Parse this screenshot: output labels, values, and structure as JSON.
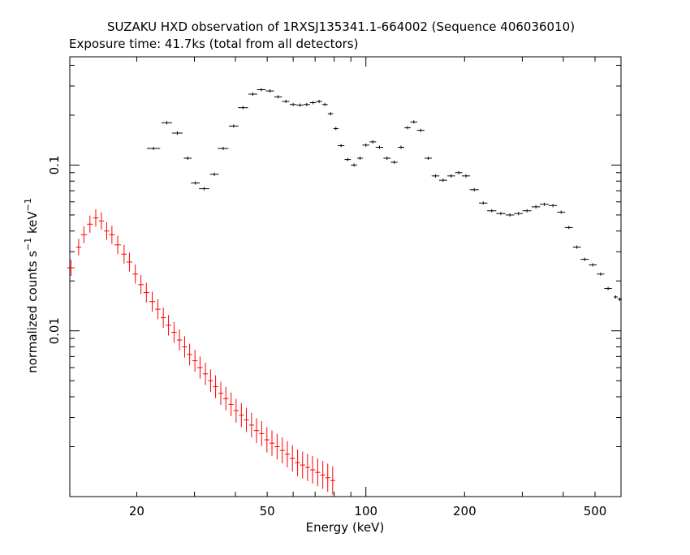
{
  "chart_data": {
    "type": "scatter",
    "title": "SUZAKU HXD observation of 1RXSJ135341.1-664002 (Sequence 406036010)",
    "subtitle": "Exposure time: 41.7ks (total from all detectors)",
    "xlabel": "Energy (keV)",
    "ylabel_main": "normalized counts s",
    "ylabel_sup1": "−1",
    "ylabel_mid": " keV",
    "ylabel_sup2": "−1",
    "xscale": "log",
    "yscale": "log",
    "xlim": [
      12.5,
      600
    ],
    "ylim": [
      0.001,
      0.45
    ],
    "xticks": [
      {
        "value": 20,
        "label": "20"
      },
      {
        "value": 50,
        "label": "50"
      },
      {
        "value": 100,
        "label": "100"
      },
      {
        "value": 200,
        "label": "200"
      },
      {
        "value": 500,
        "label": "500"
      }
    ],
    "yticks": [
      {
        "value": 0.01,
        "label": "0.01"
      },
      {
        "value": 0.1,
        "label": "0.1"
      }
    ],
    "grid": false,
    "series": [
      {
        "color": "#000000",
        "points": [
          [
            22.5,
            0.126
          ],
          [
            24.7,
            0.18
          ],
          [
            26.6,
            0.156
          ],
          [
            28.6,
            0.11
          ],
          [
            30.2,
            0.078
          ],
          [
            32.1,
            0.072
          ],
          [
            34.5,
            0.088
          ],
          [
            36.7,
            0.126
          ],
          [
            39.5,
            0.172
          ],
          [
            42.2,
            0.222
          ],
          [
            45.2,
            0.268
          ],
          [
            48.0,
            0.285
          ],
          [
            51.0,
            0.28
          ],
          [
            54,
            0.258
          ],
          [
            57,
            0.242
          ],
          [
            60,
            0.232
          ],
          [
            63,
            0.23
          ],
          [
            66,
            0.232
          ],
          [
            69,
            0.238
          ],
          [
            72,
            0.242
          ],
          [
            75,
            0.232
          ],
          [
            78,
            0.204
          ],
          [
            81,
            0.166
          ],
          [
            84,
            0.131
          ],
          [
            88,
            0.108
          ],
          [
            92,
            0.1
          ],
          [
            96,
            0.11
          ],
          [
            100,
            0.132
          ],
          [
            105,
            0.138
          ],
          [
            110,
            0.128
          ],
          [
            116,
            0.11
          ],
          [
            122,
            0.104
          ],
          [
            128,
            0.128
          ],
          [
            134,
            0.168
          ],
          [
            140,
            0.182
          ],
          [
            147,
            0.162
          ],
          [
            155,
            0.11
          ],
          [
            163,
            0.086
          ],
          [
            172,
            0.081
          ],
          [
            182,
            0.086
          ],
          [
            192,
            0.09
          ],
          [
            202,
            0.086
          ],
          [
            214,
            0.071
          ],
          [
            228,
            0.059
          ],
          [
            242,
            0.053
          ],
          [
            258,
            0.051
          ],
          [
            275,
            0.05
          ],
          [
            292,
            0.051
          ],
          [
            310,
            0.053
          ],
          [
            330,
            0.056
          ],
          [
            350,
            0.058
          ],
          [
            372,
            0.057
          ],
          [
            394,
            0.052
          ],
          [
            416,
            0.042
          ],
          [
            440,
            0.032
          ],
          [
            465,
            0.027
          ],
          [
            492,
            0.025
          ],
          [
            520,
            0.022
          ],
          [
            548,
            0.018
          ],
          [
            578,
            0.016
          ],
          [
            595,
            0.0155
          ]
        ]
      },
      {
        "color": "#ff0000",
        "points": [
          [
            12.6,
            0.024
          ],
          [
            13.3,
            0.032
          ],
          [
            13.8,
            0.038
          ],
          [
            14.4,
            0.044
          ],
          [
            15.0,
            0.048
          ],
          [
            15.6,
            0.046
          ],
          [
            16.2,
            0.04
          ],
          [
            16.8,
            0.038
          ],
          [
            17.5,
            0.033
          ],
          [
            18.3,
            0.029
          ],
          [
            19.0,
            0.026
          ],
          [
            19.8,
            0.022
          ],
          [
            20.6,
            0.019
          ],
          [
            21.4,
            0.017
          ],
          [
            22.3,
            0.015
          ],
          [
            23.2,
            0.0135
          ],
          [
            24.1,
            0.012
          ],
          [
            25.0,
            0.0108
          ],
          [
            26.0,
            0.0098
          ],
          [
            27.0,
            0.0088
          ],
          [
            28.0,
            0.008
          ],
          [
            29.0,
            0.0072
          ],
          [
            30.1,
            0.0066
          ],
          [
            31.2,
            0.006
          ],
          [
            32.4,
            0.0055
          ],
          [
            33.6,
            0.005
          ],
          [
            34.8,
            0.0046
          ],
          [
            36.1,
            0.0042
          ],
          [
            37.4,
            0.0039
          ],
          [
            38.8,
            0.0036
          ],
          [
            40.2,
            0.0033
          ],
          [
            41.7,
            0.0031
          ],
          [
            43.2,
            0.0029
          ],
          [
            44.8,
            0.0027
          ],
          [
            46.4,
            0.0025
          ],
          [
            48.1,
            0.0024
          ],
          [
            49.9,
            0.0022
          ],
          [
            51.7,
            0.0021
          ],
          [
            53.6,
            0.002
          ],
          [
            55.6,
            0.0019
          ],
          [
            57.6,
            0.0018
          ],
          [
            59.7,
            0.0017
          ],
          [
            61.9,
            0.0016
          ],
          [
            64.1,
            0.00155
          ],
          [
            66.4,
            0.0015
          ],
          [
            68.8,
            0.00145
          ],
          [
            71.3,
            0.0014
          ],
          [
            73.9,
            0.00135
          ],
          [
            76.5,
            0.0013
          ],
          [
            79.2,
            0.00125
          ]
        ]
      }
    ]
  }
}
